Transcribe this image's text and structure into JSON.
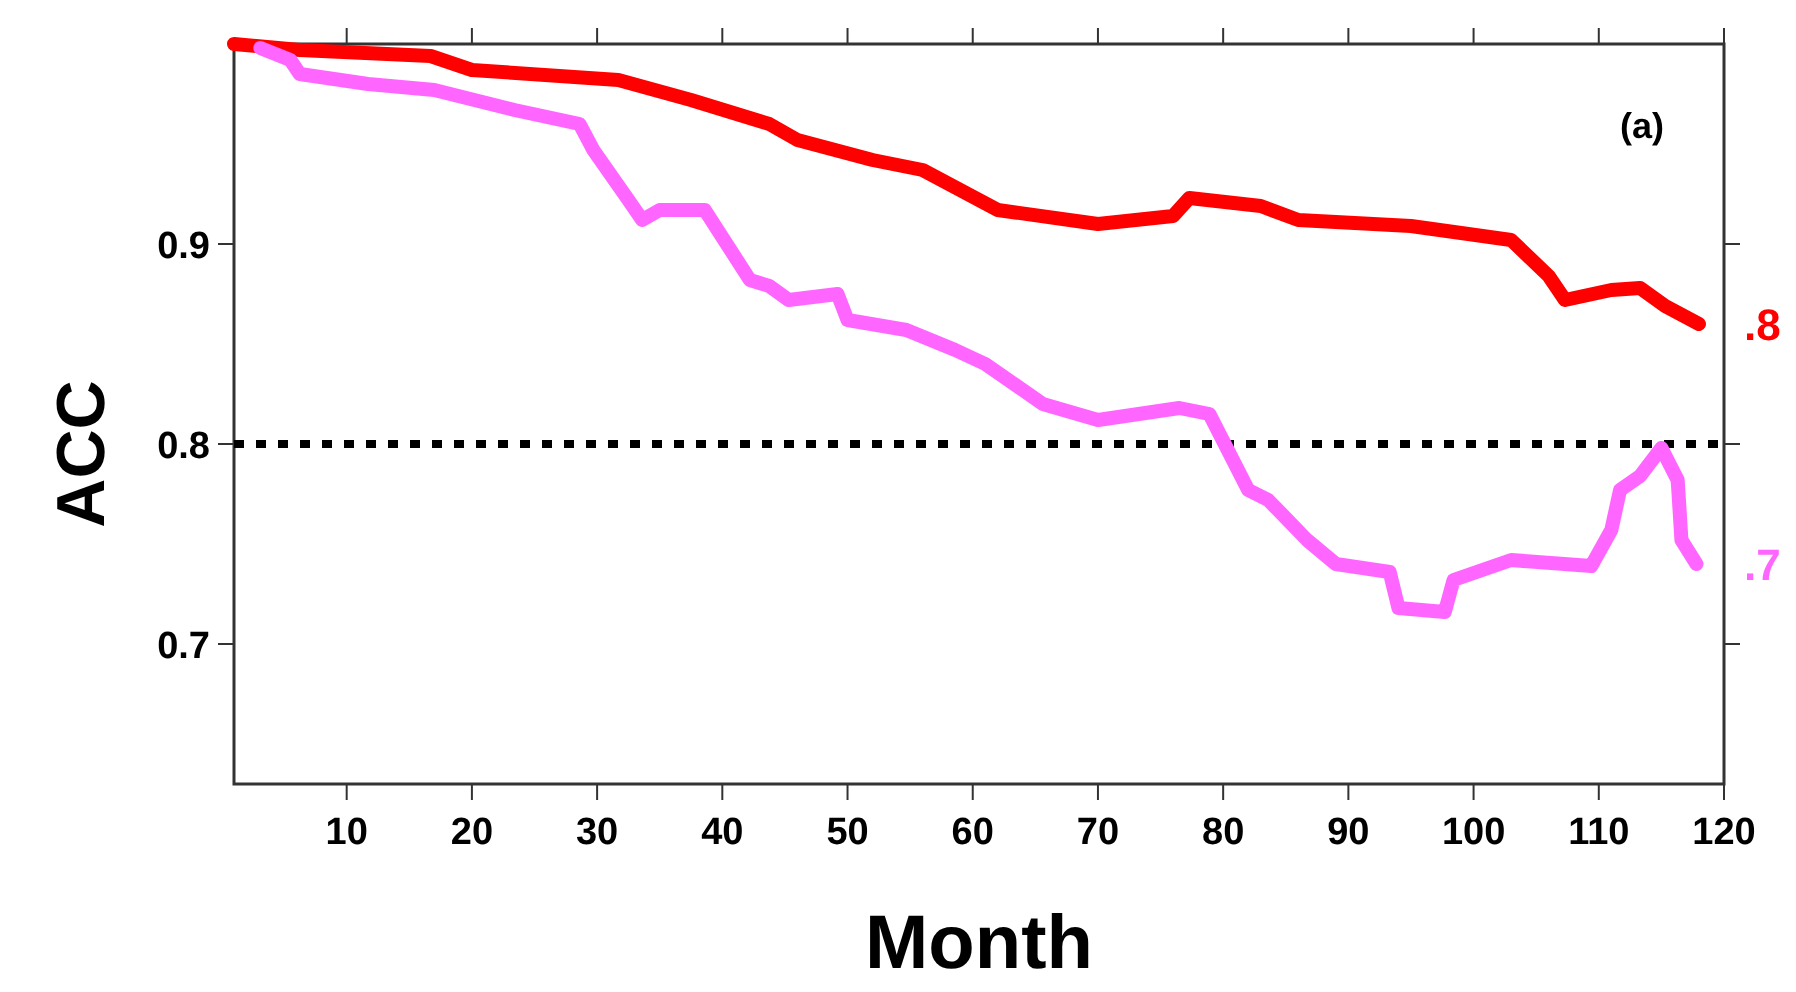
{
  "chart_data": {
    "type": "line",
    "xlabel": "Month",
    "ylabel": "ACC",
    "xlim": [
      1,
      120
    ],
    "xticks": [
      10,
      20,
      30,
      40,
      50,
      60,
      70,
      80,
      90,
      100,
      110,
      120
    ],
    "ylim": [
      0.63,
      1.0
    ],
    "yticks": [
      0.7,
      0.8,
      0.9
    ],
    "grid": false,
    "line_style": "solid",
    "marker": "none",
    "ref_lines": [
      {
        "axis": "y",
        "value": 0.8,
        "color": "#000000",
        "line_style": "dotted"
      }
    ],
    "annotations": [
      "(a)",
      ".8",
      ".7"
    ],
    "series": [
      {
        "color": "#ff0000",
        "x": [
          1,
          6.25,
          16.7,
          20,
          31.7,
          37.5,
          43.75,
          46,
          52,
          56,
          57.5,
          62,
          70,
          76,
          77.3,
          83,
          86,
          95,
          103,
          106,
          107.3,
          111,
          113.3,
          115.3,
          118
        ],
        "values": [
          1.0,
          0.997,
          0.994,
          0.987,
          0.982,
          0.972,
          0.96,
          0.952,
          0.942,
          0.937,
          0.932,
          0.917,
          0.91,
          0.914,
          0.923,
          0.919,
          0.912,
          0.909,
          0.902,
          0.884,
          0.872,
          0.877,
          0.878,
          0.869,
          0.86
        ]
      },
      {
        "color": "#ff66ff",
        "x": [
          3.1,
          5.5,
          6.25,
          11.7,
          17,
          23.4,
          28.6,
          29.7,
          32.5,
          33.6,
          35,
          38.6,
          42.2,
          43.75,
          45.3,
          49.2,
          50,
          54.7,
          58.6,
          61,
          65.6,
          70,
          76.5,
          78.9,
          82,
          83.6,
          86.7,
          89,
          93.3,
          94,
          97.7,
          98.4,
          103,
          109.4,
          111,
          111.7,
          113.3,
          115,
          116.3,
          116.6,
          117.8
        ],
        "values": [
          0.998,
          0.992,
          0.985,
          0.98,
          0.977,
          0.967,
          0.96,
          0.947,
          0.922,
          0.912,
          0.917,
          0.917,
          0.882,
          0.879,
          0.872,
          0.875,
          0.862,
          0.857,
          0.847,
          0.84,
          0.82,
          0.812,
          0.818,
          0.815,
          0.777,
          0.772,
          0.752,
          0.74,
          0.736,
          0.718,
          0.716,
          0.732,
          0.742,
          0.739,
          0.757,
          0.777,
          0.784,
          0.798,
          0.782,
          0.752,
          0.74
        ]
      }
    ]
  }
}
